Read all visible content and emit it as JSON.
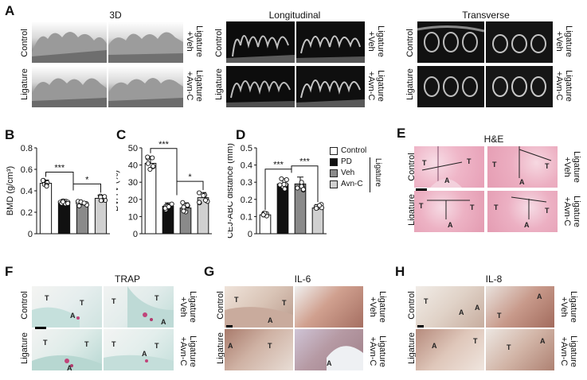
{
  "panel_letters": [
    "A",
    "B",
    "C",
    "D",
    "E",
    "F",
    "G",
    "H"
  ],
  "panelA": {
    "titles": [
      "3D",
      "Longitudinal",
      "Transverse"
    ],
    "left_rows": [
      "Control",
      "Ligature"
    ],
    "right_rows": [
      "Ligature\n+Veh",
      "Ligature\n+Avn-C"
    ]
  },
  "panelE": {
    "title": "H&E",
    "left_rows": [
      "Control",
      "Ligature"
    ],
    "right_rows": [
      "Ligature\n+Veh",
      "Ligature\n+Avn-C"
    ]
  },
  "panelF": {
    "title": "TRAP",
    "left_rows": [
      "Control",
      "Ligature"
    ],
    "right_rows": [
      "Ligature\n+Veh",
      "Ligature\n+Avn-C"
    ]
  },
  "panelG": {
    "title": "IL-6",
    "left_rows": [
      "Control",
      "Ligature"
    ],
    "right_rows": [
      "Ligature\n+Veh",
      "Ligature\n+Avn-C"
    ]
  },
  "panelH": {
    "title": "IL-8",
    "left_rows": [
      "Control",
      "Ligature"
    ],
    "right_rows": [
      "Ligature\n+Veh",
      "Ligature\n+Avn-C"
    ]
  },
  "tissue_labels": {
    "tooth": "T",
    "alveolar": "A"
  },
  "legend": {
    "items": [
      {
        "label": "Control",
        "color": "#ffffff"
      },
      {
        "label": "PD",
        "color": "#111111"
      },
      {
        "label": "Veh",
        "color": "#8a8a8a"
      },
      {
        "label": "Avn-C",
        "color": "#d0d0d0"
      }
    ],
    "bracket_label": "Ligature"
  },
  "chart_data": [
    {
      "type": "bar",
      "ylabel": "BMD (g/cm³)",
      "ylim": [
        0,
        0.8
      ],
      "yticks": [
        "0",
        "0.2",
        "0.4",
        "0.6",
        "0.8"
      ],
      "categories": [
        "Control",
        "PD",
        "Veh",
        "Avn-C"
      ],
      "values": [
        0.47,
        0.3,
        0.27,
        0.33
      ],
      "errors": [
        0.03,
        0.02,
        0.03,
        0.03
      ],
      "significance": [
        "***",
        "*"
      ]
    },
    {
      "type": "bar",
      "ylabel": "BV/TV (%)",
      "ylim": [
        0,
        50
      ],
      "yticks": [
        "0",
        "10",
        "20",
        "30",
        "40",
        "50"
      ],
      "categories": [
        "Control",
        "PD",
        "Veh",
        "Avn-C"
      ],
      "values": [
        41,
        16,
        15,
        21
      ],
      "errors": [
        4,
        2,
        3,
        3
      ],
      "significance": [
        "***",
        "*"
      ]
    },
    {
      "type": "bar",
      "ylabel": "CEJ-ABC distance (mm)",
      "ylim": [
        0,
        0.5
      ],
      "yticks": [
        "0",
        "0.1",
        "0.2",
        "0.3",
        "0.4",
        "0.5"
      ],
      "categories": [
        "Control",
        "PD",
        "Veh",
        "Avn-C"
      ],
      "values": [
        0.11,
        0.29,
        0.29,
        0.15
      ],
      "errors": [
        0.01,
        0.03,
        0.04,
        0.02
      ],
      "significance": [
        "***",
        "***"
      ]
    }
  ]
}
